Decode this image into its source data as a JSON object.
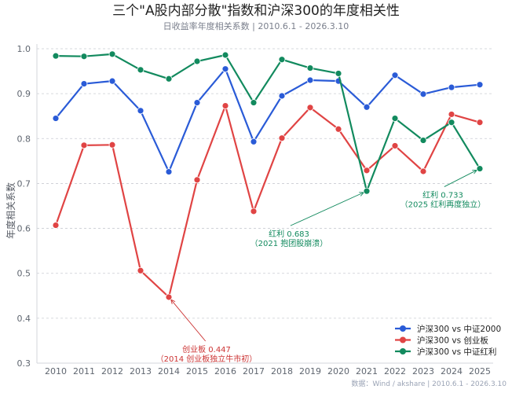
{
  "chart_data": {
    "type": "line",
    "title": "三个\"A股内部分散\"指数和沪深300的年度相关性",
    "subtitle": "日收益率年度相关系数  |  2010.6.1 - 2026.3.10",
    "xlabel": "",
    "ylabel": "年度相关系数",
    "ylim": [
      0.3,
      1.0
    ],
    "y_ticks": [
      "0.3",
      "0.4",
      "0.5",
      "0.6",
      "0.7",
      "0.8",
      "0.9",
      "1.0"
    ],
    "categories": [
      "2010",
      "2011",
      "2012",
      "2013",
      "2014",
      "2015",
      "2016",
      "2017",
      "2018",
      "2019",
      "2020",
      "2021",
      "2022",
      "2023",
      "2024",
      "2025"
    ],
    "grid": true,
    "legend_position": "bottom-right",
    "series": [
      {
        "name": "沪深300 vs 中证2000",
        "color": "#2a5bd7",
        "values": [
          0.845,
          0.922,
          0.928,
          0.862,
          0.726,
          0.88,
          0.955,
          0.793,
          0.895,
          0.93,
          0.928,
          0.87,
          0.941,
          0.899,
          0.914,
          0.92
        ]
      },
      {
        "name": "沪深300 vs 创业板",
        "color": "#e04444",
        "values": [
          0.607,
          0.785,
          0.786,
          0.506,
          0.447,
          0.708,
          0.873,
          0.638,
          0.801,
          0.869,
          0.821,
          0.729,
          0.784,
          0.727,
          0.854,
          0.836
        ]
      },
      {
        "name": "沪深300 vs 中证红利",
        "color": "#128a5e",
        "values": [
          0.984,
          0.983,
          0.988,
          0.953,
          0.933,
          0.972,
          0.986,
          0.88,
          0.976,
          0.957,
          0.945,
          0.683,
          0.845,
          0.796,
          0.836,
          0.733
        ]
      }
    ],
    "annotations": [
      {
        "series": 1,
        "category": "2014",
        "lines": [
          "创业板 0.447",
          "（2014 创业板独立牛市初）"
        ],
        "color": "#cc3333"
      },
      {
        "series": 2,
        "category": "2021",
        "lines": [
          "红利 0.683",
          "（2021 抱团股崩溃）"
        ],
        "color": "#128a5e"
      },
      {
        "series": 2,
        "category": "2025",
        "lines": [
          "红利 0.733",
          "（2025 红利再度独立）"
        ],
        "color": "#128a5e"
      }
    ],
    "source": "数据：Wind / akshare  |  2010.6.1 - 2026.3.10"
  }
}
